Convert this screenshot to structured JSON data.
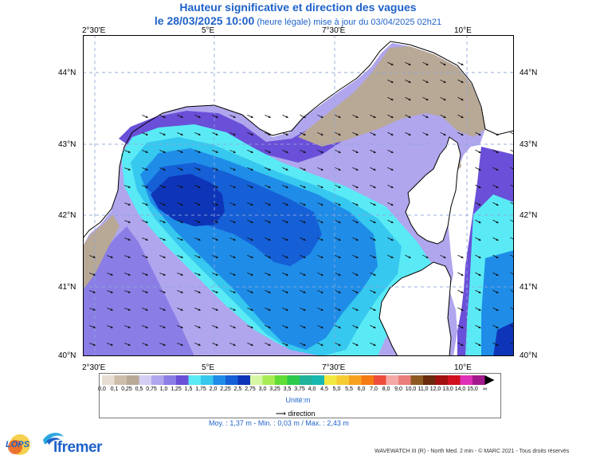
{
  "title": "Hauteur significative et direction des vagues",
  "subtitle": {
    "date": "le 28/03/2025 10:00",
    "note": "(heure légale) mise à jour du 03/04/2025 02h21"
  },
  "axes": {
    "lon_ticks": [
      "2°30'E",
      "5°E",
      "7°30'E",
      "10°E"
    ],
    "lat_ticks": [
      "44°N",
      "43°N",
      "42°N",
      "41°N",
      "40°N"
    ],
    "lon_range": [
      2.0,
      10.95
    ],
    "lat_range": [
      40.0,
      44.45
    ],
    "grid": true
  },
  "legend": {
    "labels": [
      "0,0",
      "0,1",
      "0,25",
      "0,5",
      "0,75",
      "1,0",
      "1,25",
      "1,5",
      "1,75",
      "2,0",
      "2,25",
      "2,5",
      "2,75",
      "3,0",
      "3,25",
      "3,5",
      "3,75",
      "4,0",
      "4,5",
      "5,0",
      "5,5",
      "6,0",
      "7,0",
      "8,0",
      "9,0",
      "10,0",
      "11,0",
      "12,0",
      "13,0",
      "14,0",
      "15,0",
      "∞"
    ],
    "colors": [
      "#e8ddd2",
      "#cdbeaa",
      "#b8a896",
      "#d4cff2",
      "#b0a6ee",
      "#8a7ee6",
      "#6a4fd8",
      "#5aeaf5",
      "#36c8ef",
      "#1f8de8",
      "#1560d6",
      "#0e35b8",
      "#d6f7a3",
      "#a8ec55",
      "#60dc36",
      "#2cc94a",
      "#21b49a",
      "#18b8b0",
      "#f0ea40",
      "#f6cc33",
      "#f7a21f",
      "#f47a13",
      "#ee4d3c",
      "#f4a9a6",
      "#eb7d7a",
      "#8f5a22",
      "#6b2a0c",
      "#a10f0f",
      "#d0101e",
      "#e02fb7",
      "#a3198c"
    ],
    "unit": "Unité:m",
    "direction": "direction"
  },
  "stats": "Moy. : 1,37 m   -   Min. : 0,03 m / Max. : 2,43 m",
  "footer": "WAVEWATCH III (R) - North Med. 2 min - © MARC 2021 - Tous droits réservés",
  "logos": {
    "lops": "LOPS",
    "ifremer": "Ifremer"
  }
}
